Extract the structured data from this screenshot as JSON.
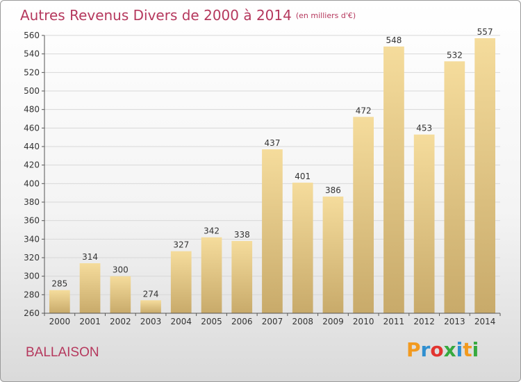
{
  "header": {
    "title": "Autres Revenus Divers de 2000 à 2014",
    "unit": "(en milliers d'€)"
  },
  "footer": {
    "place": "BALLAISON",
    "logo_text": "Proxiti",
    "logo_colors": [
      "#f29a1f",
      "#2f8fd0",
      "#e2342f",
      "#36a93f",
      "#2f8fd0",
      "#f29a1f",
      "#36a93f"
    ]
  },
  "colors": {
    "title": "#b5385d",
    "bar_top": "#f5dc9c",
    "bar_bottom": "#c8aa6a",
    "grid": "#d8d8d8",
    "axis": "#555555"
  },
  "chart_data": {
    "type": "bar",
    "categories": [
      "2000",
      "2001",
      "2002",
      "2003",
      "2004",
      "2005",
      "2006",
      "2007",
      "2008",
      "2009",
      "2010",
      "2011",
      "2012",
      "2013",
      "2014"
    ],
    "values": [
      285,
      314,
      300,
      274,
      327,
      342,
      338,
      437,
      401,
      386,
      472,
      548,
      453,
      532,
      557
    ],
    "title": "Autres Revenus Divers de 2000 à 2014",
    "subtitle": "(en milliers d'€)",
    "xlabel": "",
    "ylabel": "",
    "ylim": [
      260,
      560
    ],
    "yticks": [
      260,
      280,
      300,
      320,
      340,
      360,
      380,
      400,
      420,
      440,
      460,
      480,
      500,
      520,
      540,
      560
    ],
    "grid": true,
    "legend": "none"
  }
}
